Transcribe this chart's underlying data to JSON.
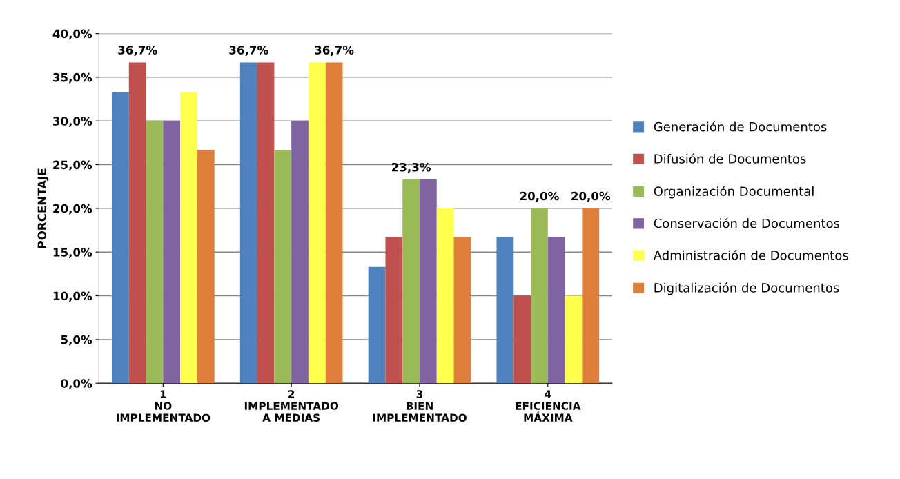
{
  "chart_data": {
    "type": "bar",
    "ylabel": "PORCENTAJE",
    "categories": [
      "1\nNO\nIMPLEMENTADO",
      "2\nIMPLEMENTADO\nA MEDIAS",
      "3\nBIEN\nIMPLEMENTADO",
      "4\nEFICIENCIA\nMÁXIMA"
    ],
    "series": [
      {
        "name": "Generación de Documentos",
        "color": "#4f81bd",
        "values": [
          33.3,
          36.7,
          13.3,
          16.7
        ],
        "value_labels": [
          null,
          "36,7%",
          null,
          null
        ]
      },
      {
        "name": "Difusión de Documentos",
        "color": "#c0504d",
        "values": [
          36.7,
          36.7,
          16.7,
          10.0
        ],
        "value_labels": [
          "36,7%",
          null,
          null,
          null
        ]
      },
      {
        "name": "Organización Documental",
        "color": "#9bbb59",
        "values": [
          30.0,
          26.7,
          23.3,
          20.0
        ],
        "value_labels": [
          null,
          null,
          "23,3%",
          "20,0%"
        ]
      },
      {
        "name": "Conservación de Documentos",
        "color": "#8064a2",
        "values": [
          30.0,
          30.0,
          23.3,
          16.7
        ],
        "value_labels": [
          null,
          null,
          null,
          null
        ]
      },
      {
        "name": "Administración de Documentos",
        "color": "#ffff4d",
        "values": [
          33.3,
          36.7,
          20.0,
          10.0
        ],
        "value_labels": [
          null,
          null,
          null,
          null
        ]
      },
      {
        "name": "Digitalización de Documentos",
        "color": "#e07f3b",
        "values": [
          26.7,
          36.7,
          16.7,
          20.0
        ],
        "value_labels": [
          null,
          "36,7%",
          null,
          "20,0%"
        ]
      }
    ],
    "ylim": [
      0,
      40
    ],
    "yticks": [
      {
        "value": 0,
        "label": "0,0%"
      },
      {
        "value": 5,
        "label": "5,0%"
      },
      {
        "value": 10,
        "label": "10,0%"
      },
      {
        "value": 15,
        "label": "15,0%"
      },
      {
        "value": 20,
        "label": "20,0%"
      },
      {
        "value": 25,
        "label": "25,0%"
      },
      {
        "value": 30,
        "label": "30,0%"
      },
      {
        "value": 35,
        "label": "35,0%"
      },
      {
        "value": 40,
        "label": "40,0%"
      }
    ],
    "grid": "y",
    "legend": "right"
  }
}
